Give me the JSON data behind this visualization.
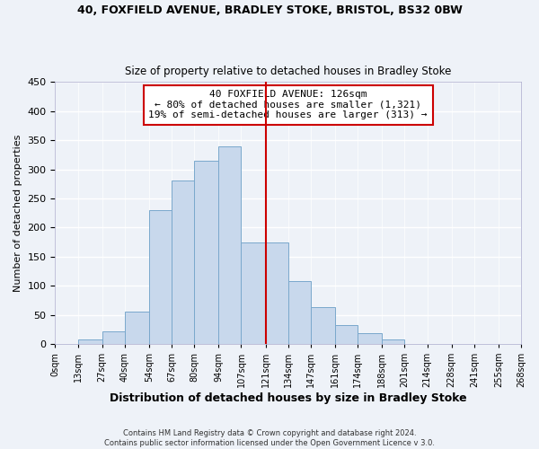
{
  "title1": "40, FOXFIELD AVENUE, BRADLEY STOKE, BRISTOL, BS32 0BW",
  "title2": "Size of property relative to detached houses in Bradley Stoke",
  "xlabel": "Distribution of detached houses by size in Bradley Stoke",
  "ylabel": "Number of detached properties",
  "footer1": "Contains HM Land Registry data © Crown copyright and database right 2024.",
  "footer2": "Contains public sector information licensed under the Open Government Licence v 3.0.",
  "bin_labels": [
    "0sqm",
    "13sqm",
    "27sqm",
    "40sqm",
    "54sqm",
    "67sqm",
    "80sqm",
    "94sqm",
    "107sqm",
    "121sqm",
    "134sqm",
    "147sqm",
    "161sqm",
    "174sqm",
    "188sqm",
    "201sqm",
    "214sqm",
    "228sqm",
    "241sqm",
    "255sqm",
    "268sqm"
  ],
  "bar_values": [
    0,
    7,
    22,
    55,
    230,
    280,
    315,
    340,
    175,
    175,
    108,
    63,
    33,
    19,
    8,
    0,
    0,
    0,
    0,
    0
  ],
  "bin_edges": [
    0,
    13,
    27,
    40,
    54,
    67,
    80,
    94,
    107,
    121,
    134,
    147,
    161,
    174,
    188,
    201,
    214,
    228,
    241,
    255,
    268
  ],
  "bar_color": "#c8d8ec",
  "bar_edge_color": "#7aa8cc",
  "vline_x": 121,
  "vline_color": "#cc0000",
  "annotation_title": "40 FOXFIELD AVENUE: 126sqm",
  "annotation_line1": "← 80% of detached houses are smaller (1,321)",
  "annotation_line2": "19% of semi-detached houses are larger (313) →",
  "annotation_box_color": "#cc0000",
  "ylim": [
    0,
    450
  ],
  "yticks": [
    0,
    50,
    100,
    150,
    200,
    250,
    300,
    350,
    400,
    450
  ],
  "bg_color": "#eef2f8"
}
